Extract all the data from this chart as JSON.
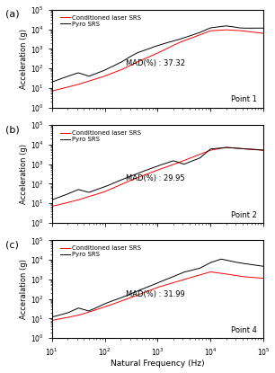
{
  "panels": [
    {
      "label": "(a)",
      "point_label": "Point 1",
      "mad": "MAD(%) : 37.32",
      "ylabel": "Acceleration (g)",
      "laser_keypoints_x": [
        1.0,
        1.5,
        2.0,
        2.3,
        2.6,
        3.0,
        3.4,
        3.8,
        4.0,
        4.3,
        4.6,
        5.0
      ],
      "laser_keypoints_y": [
        7,
        15,
        40,
        80,
        200,
        600,
        2000,
        5000,
        8000,
        9000,
        8000,
        6000
      ],
      "pyro_keypoints_x": [
        1.0,
        1.3,
        1.5,
        1.7,
        2.0,
        2.3,
        2.6,
        3.0,
        3.4,
        3.8,
        4.0,
        4.3,
        4.6,
        5.0
      ],
      "pyro_keypoints_y": [
        20,
        40,
        60,
        40,
        80,
        200,
        600,
        1500,
        3000,
        7000,
        12000,
        15000,
        12000,
        12000
      ]
    },
    {
      "label": "(b)",
      "point_label": "Point 2",
      "mad": "MAD(%) : 29.95",
      "ylabel": "Acceleration (g)",
      "laser_keypoints_x": [
        1.0,
        1.5,
        2.0,
        2.5,
        3.0,
        3.5,
        4.0,
        4.3,
        4.6,
        5.0
      ],
      "laser_keypoints_y": [
        7,
        15,
        40,
        150,
        500,
        1500,
        5000,
        7000,
        6000,
        5000
      ],
      "pyro_keypoints_x": [
        1.0,
        1.3,
        1.5,
        1.7,
        2.0,
        2.5,
        3.0,
        3.3,
        3.5,
        3.8,
        4.0,
        4.3,
        4.6,
        5.0
      ],
      "pyro_keypoints_y": [
        15,
        30,
        50,
        35,
        70,
        250,
        800,
        1500,
        1000,
        2000,
        6000,
        7000,
        6000,
        5000
      ]
    },
    {
      "label": "(c)",
      "point_label": "Point 4",
      "mad": "MAD(%) : 31.99",
      "ylabel": "Acceralation (g)",
      "laser_keypoints_x": [
        1.0,
        1.5,
        2.0,
        2.5,
        3.0,
        3.5,
        4.0,
        4.3,
        4.6,
        5.0
      ],
      "laser_keypoints_y": [
        8,
        15,
        40,
        120,
        400,
        1000,
        2500,
        2000,
        1500,
        1200
      ],
      "pyro_keypoints_x": [
        1.0,
        1.3,
        1.5,
        1.7,
        2.0,
        2.5,
        3.0,
        3.5,
        3.8,
        4.0,
        4.2,
        4.5,
        5.0
      ],
      "pyro_keypoints_y": [
        12,
        20,
        35,
        25,
        60,
        200,
        700,
        2500,
        4000,
        8000,
        12000,
        8000,
        5000
      ]
    }
  ],
  "xlabel": "Natural Frequency (Hz)",
  "legend_labels": [
    "Conditioned laser SRS",
    "Pyro SRS"
  ],
  "line_color_laser": "#FF0000",
  "line_color_pyro": "#000000",
  "background_color": "#ffffff",
  "xlim": [
    10,
    100000
  ],
  "ylim": [
    1,
    100000
  ],
  "seed_a": 10,
  "seed_b": 20,
  "seed_c": 30
}
